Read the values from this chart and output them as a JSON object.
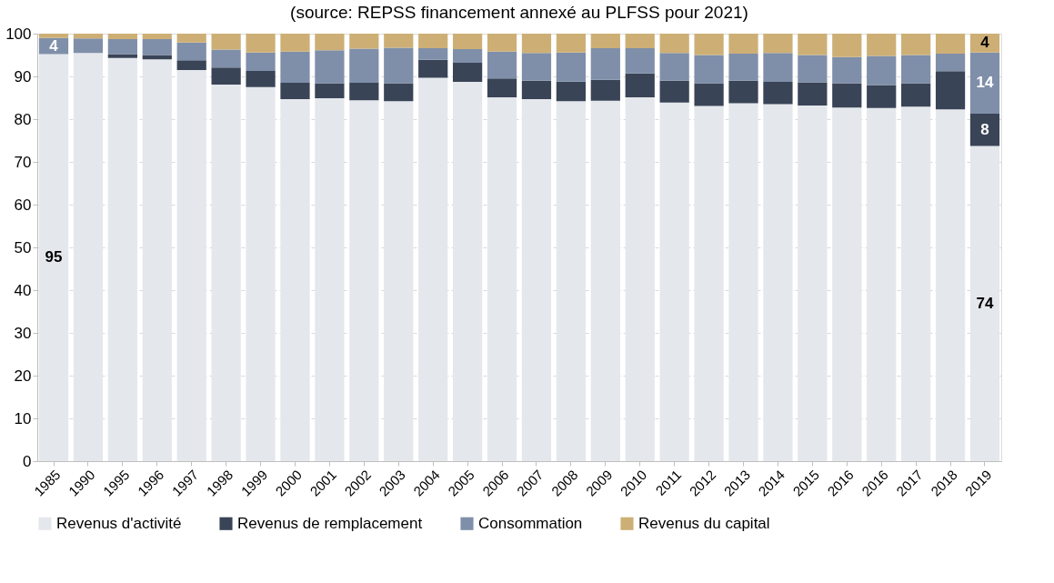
{
  "chart_data": {
    "type": "bar",
    "stacked": true,
    "title": "(source: REPSS financement annexé au PLFSS pour 2021)",
    "categories": [
      "1985",
      "1990",
      "1995",
      "1996",
      "1997",
      "1998",
      "1999",
      "2000",
      "2001",
      "2002",
      "2003",
      "2004",
      "2005",
      "2006",
      "2007",
      "2008",
      "2009",
      "2010",
      "2011",
      "2012",
      "2013",
      "2014",
      "2015",
      "2016",
      "2016",
      "2017",
      "2018",
      "2019"
    ],
    "series": [
      {
        "name": "Revenus d'activité",
        "color": "#e4e7ec",
        "values": [
          95.2,
          95.5,
          94.3,
          94.0,
          91.5,
          88.1,
          87.5,
          84.7,
          84.9,
          84.4,
          84.2,
          89.7,
          88.7,
          85.1,
          84.7,
          84.2,
          84.3,
          85.1,
          83.9,
          83.1,
          83.7,
          83.5,
          83.2,
          82.7,
          82.6,
          82.9,
          82.3,
          73.7
        ],
        "value_labels": [
          "95",
          null,
          null,
          null,
          null,
          null,
          null,
          null,
          null,
          null,
          null,
          null,
          null,
          null,
          null,
          null,
          null,
          null,
          null,
          null,
          null,
          null,
          null,
          null,
          null,
          null,
          null,
          "74"
        ]
      },
      {
        "name": "Revenus de remplacement",
        "color": "#3a4457",
        "values": [
          0,
          0,
          0.9,
          1.0,
          2.3,
          4.0,
          3.8,
          3.8,
          3.5,
          4.1,
          4.2,
          4.2,
          4.5,
          4.4,
          4.3,
          4.6,
          4.9,
          5.6,
          5.1,
          5.3,
          5.3,
          5.2,
          5.4,
          5.7,
          5.4,
          5.5,
          8.9,
          7.6
        ],
        "value_labels": [
          null,
          null,
          null,
          null,
          null,
          null,
          null,
          null,
          null,
          null,
          null,
          null,
          null,
          null,
          null,
          null,
          null,
          null,
          null,
          null,
          null,
          null,
          null,
          null,
          null,
          null,
          null,
          "8"
        ]
      },
      {
        "name": "Consommation",
        "color": "#7f8fa9",
        "values": [
          3.8,
          3.4,
          3.5,
          3.7,
          4.1,
          4.2,
          4.3,
          7.3,
          7.7,
          8.0,
          8.3,
          2.7,
          3.2,
          6.3,
          6.5,
          6.8,
          7.4,
          5.9,
          6.5,
          6.6,
          6.3,
          6.8,
          6.4,
          6.1,
          6.8,
          6.6,
          4.1,
          14.3
        ],
        "value_labels": [
          "4",
          null,
          null,
          null,
          null,
          null,
          null,
          null,
          null,
          null,
          null,
          null,
          null,
          null,
          null,
          null,
          null,
          null,
          null,
          null,
          null,
          null,
          null,
          null,
          null,
          null,
          null,
          "14"
        ]
      },
      {
        "name": "Revenus du capital",
        "color": "#cdaf76",
        "values": [
          1.0,
          1.1,
          1.3,
          1.3,
          2.1,
          3.7,
          4.4,
          4.2,
          3.9,
          3.5,
          3.3,
          3.4,
          3.6,
          4.2,
          4.5,
          4.4,
          3.4,
          3.4,
          4.5,
          5.0,
          4.7,
          4.5,
          5.0,
          5.5,
          5.2,
          5.0,
          4.7,
          4.4
        ],
        "value_labels": [
          null,
          null,
          null,
          null,
          null,
          null,
          null,
          null,
          null,
          null,
          null,
          null,
          null,
          null,
          null,
          null,
          null,
          null,
          null,
          null,
          null,
          null,
          null,
          null,
          null,
          null,
          null,
          "4"
        ]
      }
    ],
    "ylim": [
      0,
      100
    ],
    "yticks": [
      0,
      10,
      20,
      30,
      40,
      50,
      60,
      70,
      80,
      90,
      100
    ],
    "grid": "y",
    "legend": "bottom"
  }
}
